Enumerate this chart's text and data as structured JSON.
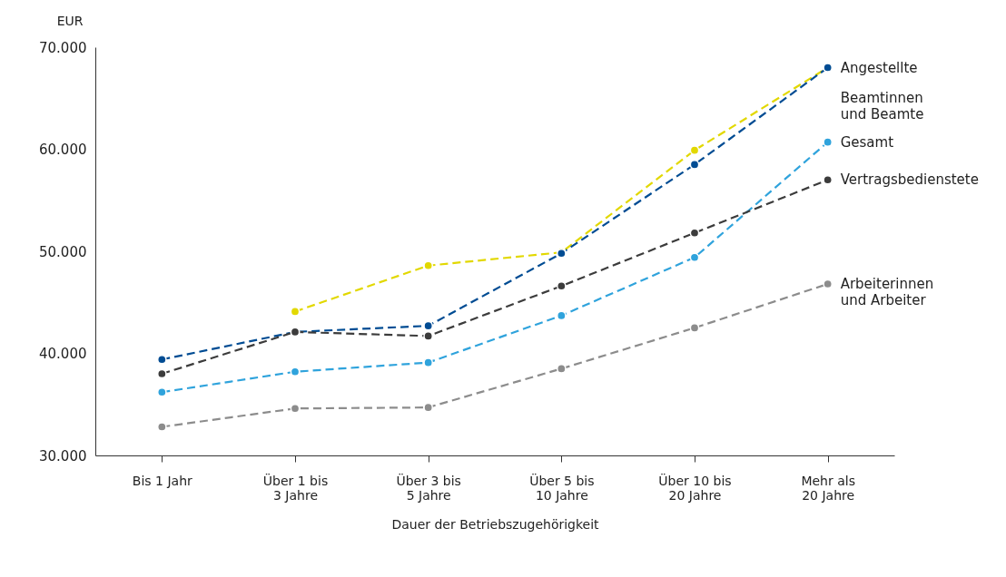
{
  "chart_data": {
    "type": "line",
    "xlabel": "Dauer der Betriebszugehörigkeit",
    "ylabel": "EUR",
    "categories": [
      "Bis 1 Jahr",
      "Über 1 bis 3 Jahre",
      "Über 3 bis 5 Jahre",
      "Über 5 bis 10 Jahre",
      "Über 10 bis 20 Jahre",
      "Mehr als 20 Jahre"
    ],
    "series": [
      {
        "name": "Angestellte",
        "color": "#e2d800",
        "values": [
          null,
          44100,
          48600,
          49900,
          59900,
          68000
        ]
      },
      {
        "name": "Beamtinnen und Beamte",
        "color": "#004c93",
        "values": [
          39400,
          42100,
          42700,
          49800,
          58500,
          68000
        ]
      },
      {
        "name": "Gesamt",
        "color": "#2fa3dc",
        "values": [
          36200,
          38200,
          39100,
          43700,
          49400,
          60700
        ]
      },
      {
        "name": "Vertragsbedienstete",
        "color": "#3c3c3c",
        "values": [
          38000,
          42100,
          41700,
          46600,
          51800,
          57000
        ]
      },
      {
        "name": "Arbeiterinnen und Arbeiter",
        "color": "#8c8c8c",
        "values": [
          32800,
          34600,
          34700,
          38500,
          42500,
          46800
        ]
      }
    ],
    "ylim": [
      30000,
      70000
    ],
    "yticks": [
      {
        "value": 30000,
        "label": "30.000"
      },
      {
        "value": 40000,
        "label": "40.000"
      },
      {
        "value": 50000,
        "label": "50.000"
      },
      {
        "value": 60000,
        "label": "60.000"
      },
      {
        "value": 70000,
        "label": "70.000"
      }
    ],
    "grid": false,
    "marker": "circle",
    "line_style": "dashed"
  }
}
